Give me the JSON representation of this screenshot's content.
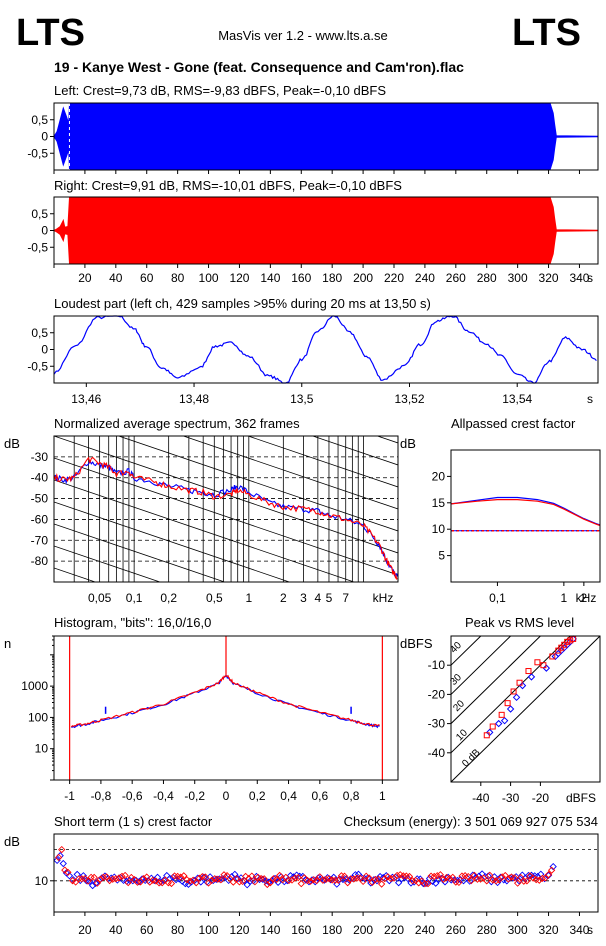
{
  "header": {
    "logo_left": "LTS",
    "logo_right": "LTS",
    "app_title": "MasVis ver 1.2 - www.lts.a.se",
    "file_title": "19 - Kanye West - Gone (feat. Consequence and Cam'ron).flac"
  },
  "colors": {
    "left": "#0000ff",
    "right": "#ff0000",
    "axis": "#000000"
  },
  "chart_data": [
    {
      "type": "area",
      "title": "Left: Crest=9,73 dB, RMS=-9,83 dBFS, Peak=-0,10 dBFS",
      "channel": "left",
      "ylim": [
        -1,
        1
      ],
      "yticks": [
        "0,5",
        "0",
        "-0,5"
      ],
      "xlim": [
        0,
        352
      ],
      "envelope": [
        [
          0,
          0
        ],
        [
          2,
          0.15
        ],
        [
          4,
          0.5
        ],
        [
          6,
          0.85
        ],
        [
          8,
          0.6
        ],
        [
          9.5,
          0.4
        ],
        [
          10,
          0.98
        ],
        [
          11,
          0.99
        ],
        [
          300,
          0.99
        ],
        [
          321,
          0.99
        ],
        [
          323,
          0.7
        ],
        [
          324,
          0.35
        ],
        [
          325,
          0.02
        ],
        [
          352,
          0.01
        ]
      ]
    },
    {
      "type": "area",
      "title": "Right: Crest=9,91 dB, RMS=-10,01 dBFS, Peak=-0,10 dBFS",
      "channel": "right",
      "ylim": [
        -1,
        1
      ],
      "yticks": [
        "0,5",
        "0",
        "-0,5"
      ],
      "xlim": [
        0,
        352
      ],
      "xticks": [
        "20",
        "40",
        "60",
        "80",
        "100",
        "120",
        "140",
        "160",
        "180",
        "200",
        "220",
        "240",
        "260",
        "280",
        "300",
        "320",
        "340"
      ],
      "xunit": "s",
      "envelope": [
        [
          0,
          0
        ],
        [
          2,
          0.05
        ],
        [
          4,
          0.12
        ],
        [
          6,
          0.3
        ],
        [
          7,
          0.1
        ],
        [
          9,
          0.12
        ],
        [
          10,
          0.98
        ],
        [
          11,
          0.99
        ],
        [
          321,
          0.99
        ],
        [
          323,
          0.7
        ],
        [
          324,
          0.35
        ],
        [
          325,
          0.02
        ],
        [
          352,
          0.01
        ]
      ]
    },
    {
      "type": "line",
      "title": "Loudest part (left  ch, 429 samples >95% during 20 ms at 13,50 s)",
      "ylim": [
        -1,
        1
      ],
      "yticks": [
        "0,5",
        "0",
        "-0,5"
      ],
      "xlim": [
        13.454,
        13.555
      ],
      "xticks": [
        "13,46",
        "13,48",
        "13,5",
        "13,52",
        "13,54"
      ],
      "xunit": "s",
      "x": [
        13.454,
        13.458,
        13.462,
        13.466,
        13.469,
        13.471,
        13.474,
        13.477,
        13.481,
        13.484,
        13.487,
        13.49,
        13.494,
        13.497,
        13.5,
        13.503,
        13.506,
        13.509,
        13.512,
        13.515,
        13.519,
        13.522,
        13.525,
        13.528,
        13.531,
        13.534,
        13.537,
        13.54,
        13.543,
        13.546,
        13.549,
        13.552,
        13.555
      ],
      "y": [
        -0.7,
        0.1,
        0.95,
        1.0,
        0.6,
        0.1,
        -0.55,
        -0.85,
        -0.55,
        0.1,
        0.2,
        -0.2,
        -0.8,
        -1.0,
        -0.3,
        0.55,
        1.0,
        0.5,
        -0.2,
        -0.9,
        -0.5,
        0.15,
        0.85,
        1.0,
        0.55,
        0.2,
        -0.2,
        -0.75,
        -1.0,
        -0.35,
        0.35,
        0.0,
        -0.3
      ]
    },
    {
      "type": "line",
      "title": "Normalized average spectrum, 362 frames",
      "ylabel": "dB",
      "xunit": "kHz",
      "xscale": "log",
      "xlim": [
        0.02,
        20
      ],
      "ylim": [
        -90,
        -20
      ],
      "yticks": [
        -30,
        -40,
        -50,
        -60,
        -70,
        -80
      ],
      "xticks": [
        [
          "0,05",
          0.05
        ],
        [
          "0,1",
          0.1
        ],
        [
          "0,2",
          0.2
        ],
        [
          "0,5",
          0.5
        ],
        [
          "1",
          1
        ],
        [
          "2",
          2
        ],
        [
          "3",
          3
        ],
        [
          "4",
          4
        ],
        [
          "5",
          5
        ],
        [
          "7",
          7
        ]
      ],
      "series": [
        {
          "channel": "left",
          "x": [
            0.02,
            0.025,
            0.03,
            0.04,
            0.05,
            0.06,
            0.07,
            0.09,
            0.1,
            0.15,
            0.2,
            0.3,
            0.4,
            0.5,
            0.7,
            0.8,
            1,
            1.5,
            2,
            3,
            4,
            5,
            7,
            10,
            12,
            14,
            16,
            18,
            20
          ],
          "y": [
            -40,
            -41,
            -40,
            -32,
            -34,
            -35,
            -38,
            -37,
            -40,
            -42,
            -44,
            -46,
            -47,
            -48,
            -46,
            -44,
            -47,
            -52,
            -54,
            -55,
            -56,
            -58,
            -60,
            -63,
            -68,
            -73,
            -80,
            -85,
            -88
          ]
        },
        {
          "channel": "right",
          "x": [
            0.02,
            0.025,
            0.03,
            0.04,
            0.05,
            0.06,
            0.07,
            0.09,
            0.1,
            0.15,
            0.2,
            0.3,
            0.4,
            0.5,
            0.7,
            0.8,
            1,
            1.5,
            2,
            3,
            4,
            5,
            7,
            10,
            12,
            14,
            16,
            18,
            20
          ],
          "y": [
            -40,
            -41,
            -40,
            -31,
            -33,
            -35,
            -38,
            -37,
            -40,
            -42,
            -44,
            -46,
            -47,
            -49,
            -48,
            -46,
            -48,
            -52,
            -54,
            -55,
            -56,
            -58,
            -60,
            -63,
            -68,
            -73,
            -80,
            -85,
            -88
          ]
        }
      ]
    },
    {
      "type": "line",
      "title": "Allpassed crest factor",
      "ylabel": "dB",
      "xunit": "kHz",
      "xscale": "log",
      "xlim": [
        0.02,
        3.5
      ],
      "ylim": [
        0,
        25
      ],
      "yticks": [
        20,
        15,
        10,
        5
      ],
      "xticks": [
        [
          "0,1",
          0.1
        ],
        [
          "1",
          1
        ],
        [
          "2",
          2
        ]
      ],
      "reference": 9.7,
      "series": [
        {
          "channel": "left",
          "x": [
            0.02,
            0.05,
            0.1,
            0.2,
            0.4,
            0.7,
            1,
            1.5,
            2,
            3,
            3.5
          ],
          "y": [
            14.8,
            15.5,
            16.0,
            16.0,
            15.6,
            14.9,
            14.0,
            12.8,
            12.0,
            11.1,
            10.8
          ]
        },
        {
          "channel": "right",
          "x": [
            0.02,
            0.05,
            0.1,
            0.2,
            0.4,
            0.7,
            1,
            1.5,
            2,
            3,
            3.5
          ],
          "y": [
            14.8,
            15.3,
            15.6,
            15.6,
            15.3,
            14.7,
            13.8,
            12.7,
            11.9,
            11.0,
            10.7
          ]
        }
      ]
    },
    {
      "type": "line",
      "title": "Histogram, \"bits\": 16,0/16,0",
      "ylabel": "n",
      "yscale": "log",
      "xlim": [
        -1.1,
        1.1
      ],
      "ylim": [
        1,
        40000
      ],
      "yticks": [
        [
          "1000",
          1000
        ],
        [
          "100",
          100
        ],
        [
          "10",
          10
        ]
      ],
      "xticks": [
        "-1",
        "-0,8",
        "-0,6",
        "-0,4",
        "-0,2",
        "0",
        "0,2",
        "0,4",
        "0,6",
        "0,8",
        "1"
      ],
      "series": [
        {
          "channel": "left",
          "x": [
            -0.99,
            -0.9,
            -0.8,
            -0.6,
            -0.4,
            -0.2,
            -0.05,
            0,
            0.05,
            0.2,
            0.4,
            0.6,
            0.8,
            0.9,
            0.99
          ],
          "y": [
            50,
            60,
            80,
            140,
            260,
            600,
            1200,
            2200,
            1200,
            600,
            260,
            140,
            80,
            60,
            50
          ]
        },
        {
          "channel": "right",
          "x": [
            -0.99,
            -0.9,
            -0.8,
            -0.6,
            -0.4,
            -0.2,
            -0.05,
            0,
            0.05,
            0.2,
            0.4,
            0.6,
            0.8,
            0.9,
            0.99
          ],
          "y": [
            52,
            62,
            82,
            145,
            270,
            620,
            1250,
            2300,
            1250,
            620,
            270,
            145,
            82,
            62,
            52
          ]
        }
      ]
    },
    {
      "type": "scatter",
      "title": "Peak vs RMS level",
      "ylabel": "dBFS",
      "xlabel": "dBFS",
      "xlim": [
        -50,
        0
      ],
      "ylim": [
        -50,
        0
      ],
      "xticks": [
        -40,
        -30,
        -20
      ],
      "yticks": [
        -10,
        -20,
        -30,
        -40
      ],
      "line_labels": [
        "40",
        "30",
        "20",
        "10",
        "0 dB"
      ],
      "series": [
        {
          "channel": "left",
          "x": [
            -37,
            -34,
            -32,
            -30,
            -28,
            -26,
            -23,
            -18,
            -15,
            -14,
            -13,
            -12,
            -11,
            -10,
            -9
          ],
          "y": [
            -33,
            -30,
            -29,
            -25,
            -21,
            -17,
            -14,
            -11,
            -7,
            -6,
            -5,
            -4,
            -3,
            -2,
            -1
          ]
        },
        {
          "channel": "right",
          "x": [
            -38,
            -36,
            -33,
            -31,
            -29,
            -27,
            -24,
            -21,
            -19,
            -16,
            -14,
            -13,
            -12,
            -11,
            -10,
            -9
          ],
          "y": [
            -34,
            -31,
            -27,
            -23,
            -19,
            -16,
            -12,
            -9,
            -10,
            -7,
            -5,
            -4,
            -3,
            -2,
            -1.5,
            -1
          ]
        }
      ]
    },
    {
      "type": "scatter",
      "title": "Short term (1 s) crest factor",
      "checksum": "Checksum (energy):  3 501 069 927 075 534",
      "ylabel": "dB",
      "xlim": [
        0,
        352
      ],
      "ylim": [
        6,
        16
      ],
      "yticks": [
        [
          "10",
          10
        ]
      ],
      "xticks": [
        "20",
        "40",
        "60",
        "80",
        "100",
        "120",
        "140",
        "160",
        "180",
        "200",
        "220",
        "240",
        "260",
        "280",
        "300",
        "320",
        "340"
      ],
      "xunit": "s",
      "series": [
        {
          "channel": "left",
          "x": [
            2,
            4,
            6,
            8,
            10,
            15,
            25,
            35,
            45,
            55,
            65,
            75,
            85,
            95,
            105,
            115,
            125,
            135,
            145,
            155,
            165,
            175,
            185,
            195,
            205,
            215,
            225,
            235,
            245,
            255,
            265,
            275,
            285,
            295,
            305,
            315,
            320,
            323,
            325
          ],
          "y": [
            12.3,
            13.5,
            12.0,
            11.0,
            10.2,
            10.5,
            9.8,
            10.4,
            9.9,
            10.3,
            10.0,
            10.5,
            9.8,
            10.2,
            10.1,
            10.6,
            9.9,
            10.3,
            10.0,
            10.4,
            10.1,
            10.2,
            9.9,
            10.5,
            10.0,
            10.3,
            10.1,
            10.2,
            9.9,
            10.4,
            10.0,
            10.6,
            10.1,
            10.3,
            10.4,
            10.5,
            10.7,
            11.5,
            12.2
          ]
        },
        {
          "channel": "right",
          "x": [
            3,
            5,
            7,
            9,
            12,
            20,
            30,
            40,
            50,
            60,
            70,
            80,
            90,
            100,
            110,
            120,
            130,
            140,
            150,
            160,
            170,
            180,
            190,
            200,
            210,
            220,
            230,
            240,
            250,
            260,
            270,
            280,
            290,
            300,
            310,
            318,
            322,
            324
          ],
          "y": [
            12.8,
            14.2,
            11.5,
            10.8,
            10.0,
            10.2,
            9.9,
            10.6,
            10.1,
            10.4,
            9.8,
            10.3,
            10.2,
            10.0,
            10.5,
            10.1,
            10.3,
            9.9,
            10.6,
            10.0,
            10.2,
            10.4,
            10.1,
            10.3,
            9.8,
            10.5,
            10.2,
            10.0,
            10.4,
            10.1,
            10.3,
            10.2,
            10.6,
            10.1,
            10.4,
            10.6,
            11.2,
            13.2
          ]
        }
      ]
    }
  ]
}
